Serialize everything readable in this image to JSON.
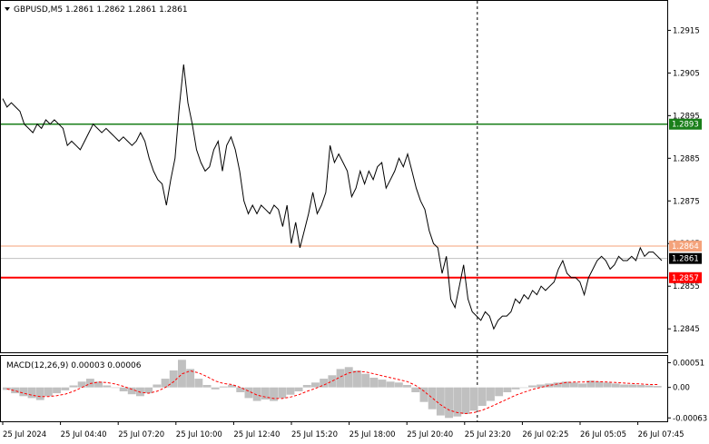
{
  "header": {
    "symbol_line": "GBPUSD,M5  1.2861 1.2862 1.2861 1.2861",
    "macd_label": "MACD(12,26,9) 0.00003 0.00006"
  },
  "colors": {
    "background": "#ffffff",
    "price_line": "#000000",
    "green_level": "#1a7f1a",
    "red_level": "#ff0000",
    "orange_level": "#f4a27a",
    "current_price_tag": "#000000",
    "histogram": "#c0c0c0",
    "signal_line": "#ff0000",
    "grid": "#000000"
  },
  "chart_data": [
    {
      "type": "line",
      "name_label": "GBPUSD,M5",
      "y_ticks": [
        "1.2915",
        "1.2905",
        "1.2895",
        "1.2885",
        "1.2875",
        "1.2865",
        "1.2855",
        "1.2845"
      ],
      "y_tick_values": [
        1.2915,
        1.2905,
        1.2895,
        1.2885,
        1.2875,
        1.2865,
        1.2855,
        1.2845
      ],
      "ylim": [
        1.28395,
        1.29219
      ],
      "x_ticks": [
        "25 Jul 2024",
        "25 Jul 04:40",
        "25 Jul 07:20",
        "25 Jul 10:00",
        "25 Jul 12:40",
        "25 Jul 15:20",
        "25 Jul 18:00",
        "25 Jul 20:40",
        "25 Jul 23:20",
        "26 Jul 02:25",
        "26 Jul 05:05",
        "26 Jul 07:45"
      ],
      "n_bars": 228,
      "price_close": [
        1.2899,
        1.2897,
        1.2898,
        1.2897,
        1.2896,
        1.2893,
        1.2892,
        1.2891,
        1.2893,
        1.2892,
        1.2894,
        1.2893,
        1.2894,
        1.2893,
        1.2892,
        1.2888,
        1.2889,
        1.2888,
        1.2887,
        1.2889,
        1.2891,
        1.2893,
        1.2892,
        1.2891,
        1.2892,
        1.2891,
        1.289,
        1.2889,
        1.289,
        1.2889,
        1.2888,
        1.2889,
        1.2891,
        1.2889,
        1.2885,
        1.2882,
        1.288,
        1.2879,
        1.2874,
        1.288,
        1.2885,
        1.2897,
        1.2907,
        1.2898,
        1.2893,
        1.2887,
        1.2884,
        1.2882,
        1.2883,
        1.2887,
        1.2889,
        1.2882,
        1.2888,
        1.289,
        1.2887,
        1.2882,
        1.2875,
        1.2872,
        1.2874,
        1.2872,
        1.2874,
        1.2873,
        1.2872,
        1.2874,
        1.2873,
        1.2869,
        1.2874,
        1.2865,
        1.287,
        1.2864,
        1.2868,
        1.2872,
        1.2877,
        1.2872,
        1.2874,
        1.2877,
        1.2888,
        1.2884,
        1.2886,
        1.2884,
        1.2882,
        1.2876,
        1.2878,
        1.2882,
        1.2879,
        1.2882,
        1.288,
        1.2883,
        1.2884,
        1.2878,
        1.288,
        1.2882,
        1.2885,
        1.2883,
        1.2886,
        1.2882,
        1.2878,
        1.2875,
        1.2873,
        1.2868,
        1.2865,
        1.2864,
        1.2858,
        1.2862,
        1.2852,
        1.285,
        1.2855,
        1.286,
        1.2852,
        1.2849,
        1.2848,
        1.2847,
        1.2849,
        1.2848,
        1.2845,
        1.2847,
        1.2848,
        1.2848,
        1.2849,
        1.2852,
        1.2851,
        1.2853,
        1.2852,
        1.2854,
        1.2853,
        1.2855,
        1.2854,
        1.2855,
        1.2856,
        1.2859,
        1.2861,
        1.2858,
        1.2857,
        1.2857,
        1.2856,
        1.2853,
        1.2857,
        1.2859,
        1.2861,
        1.2862,
        1.2861,
        1.2859,
        1.286,
        1.2862,
        1.2861,
        1.2861,
        1.2862,
        1.2861,
        1.2864,
        1.2862,
        1.2863,
        1.2863,
        1.2862,
        1.2861
      ],
      "levels": [
        {
          "value": 1.2893,
          "label": "1.2893",
          "color": "#1a7f1a"
        },
        {
          "value": 1.28644,
          "label": "1.2864",
          "color": "#f4a27a"
        },
        {
          "value": 1.28615,
          "label": "1.2861",
          "color": "#000000"
        },
        {
          "value": 1.2857,
          "label": "1.2857",
          "color": "#ff0000"
        }
      ],
      "vertical_marker_label_index": 8
    },
    {
      "type": "bar",
      "title": "MACD(12,26,9) 0.00003 0.00006",
      "y_ticks": [
        "0.00051",
        "0.00",
        "-0.00063"
      ],
      "y_tick_values": [
        0.00051,
        0.0,
        -0.00063
      ],
      "ylim": [
        -0.0007,
        0.00065
      ],
      "histogram": [
        -5e-05,
        -0.00012,
        -0.00018,
        -0.00022,
        -0.00026,
        -0.00018,
        -0.00012,
        -6e-05,
        4e-05,
        0.00012,
        0.00018,
        0.00012,
        4e-05,
        0.0,
        -8e-05,
        -0.00014,
        -0.00018,
        -0.00012,
        6e-05,
        0.00018,
        0.00035,
        0.00057,
        0.00038,
        0.00018,
        5e-05,
        -4e-05,
        2e-05,
        5e-05,
        -0.0001,
        -0.00022,
        -0.00028,
        -0.00025,
        -0.00028,
        -0.00022,
        -0.00015,
        -8e-05,
        5e-05,
        0.0001,
        0.00018,
        0.00025,
        0.00038,
        0.00042,
        0.00035,
        0.00028,
        0.0002,
        0.00016,
        0.00012,
        0.0001,
        5e-05,
        -0.0001,
        -0.0003,
        -0.00045,
        -0.00058,
        -0.00063,
        -0.0006,
        -0.00055,
        -0.00048,
        -0.00038,
        -0.00028,
        -0.00018,
        -0.0001,
        -4e-05,
        0.0,
        4e-05,
        6e-05,
        8e-05,
        0.0001,
        0.00012,
        0.0001,
        8e-05,
        0.00014,
        0.00012,
        0.0001,
        8e-05,
        6e-05,
        6e-05,
        5e-05,
        4e-05,
        3e-05
      ],
      "signal": [
        -3e-05,
        -7e-05,
        -0.00012,
        -0.00016,
        -0.00019,
        -0.00019,
        -0.00017,
        -0.00014,
        -8e-05,
        0.0,
        8e-05,
        0.00011,
        0.0001,
        7e-05,
        2e-05,
        -4e-05,
        -0.0001,
        -0.00012,
        -8e-05,
        0.0,
        0.00012,
        0.00028,
        0.00034,
        0.0003,
        0.00022,
        0.00013,
        8e-05,
        6e-05,
        0.0,
        -8e-05,
        -0.00016,
        -0.0002,
        -0.00023,
        -0.00023,
        -0.0002,
        -0.00015,
        -8e-05,
        -2e-05,
        5e-05,
        0.00013,
        0.00022,
        0.0003,
        0.00033,
        0.00032,
        0.00028,
        0.00024,
        0.0002,
        0.00016,
        0.00012,
        4e-05,
        -8e-05,
        -0.00022,
        -0.00036,
        -0.00047,
        -0.00052,
        -0.00054,
        -0.00052,
        -0.00047,
        -0.0004,
        -0.00032,
        -0.00024,
        -0.00016,
        -0.0001,
        -4e-05,
        0.0,
        4e-05,
        7e-05,
        0.0001,
        0.00011,
        0.00011,
        0.00012,
        0.00012,
        0.00011,
        0.0001,
        9e-05,
        8e-05,
        7e-05,
        6e-05,
        6e-05
      ]
    }
  ]
}
